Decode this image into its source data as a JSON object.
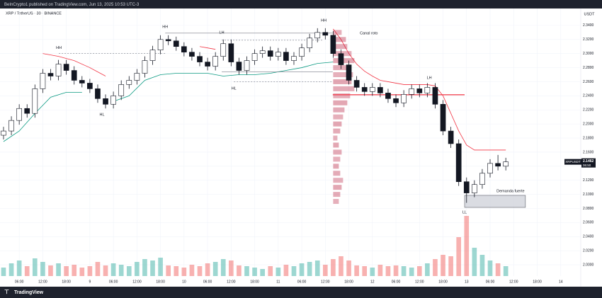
{
  "header": {
    "publisher": "BeInCrypto1 published on TradingView.com, Jun 13, 2025 10:53 UTC-3",
    "brand": "TradingView"
  },
  "chart_data": {
    "type": "candlestick",
    "symbol": "XRP / TetherUS · 30 · BINANCE",
    "y_unit": "USDT",
    "x": [
      2,
      4,
      6,
      8,
      10,
      12,
      14,
      16,
      18,
      20,
      22,
      24,
      26,
      28,
      30,
      32,
      34,
      36,
      38,
      40,
      42,
      44,
      46,
      48,
      50,
      52,
      54,
      56,
      58,
      60,
      62,
      64,
      66,
      68,
      70,
      72,
      74,
      76,
      78,
      80,
      82,
      84,
      86,
      88,
      90,
      92,
      94,
      96,
      98,
      100,
      102,
      104,
      106,
      108,
      110,
      112,
      114,
      116,
      118,
      120,
      122,
      124,
      126,
      128,
      130
    ],
    "open": [
      2.184,
      2.19,
      2.205,
      2.222,
      2.215,
      2.25,
      2.272,
      2.268,
      2.285,
      2.276,
      2.262,
      2.258,
      2.25,
      2.236,
      2.228,
      2.24,
      2.256,
      2.262,
      2.272,
      2.29,
      2.305,
      2.32,
      2.318,
      2.31,
      2.302,
      2.296,
      2.288,
      2.282,
      2.296,
      2.314,
      2.288,
      2.276,
      2.29,
      2.3,
      2.304,
      2.296,
      2.302,
      2.29,
      2.296,
      2.308,
      2.322,
      2.33,
      2.326,
      2.3,
      2.284,
      2.262,
      2.252,
      2.246,
      2.252,
      2.244,
      2.236,
      2.23,
      2.242,
      2.25,
      2.244,
      2.252,
      2.228,
      2.19,
      2.172,
      2.118,
      2.102,
      2.114,
      2.13,
      2.144,
      2.14
    ],
    "high": [
      2.196,
      2.211,
      2.228,
      2.228,
      2.256,
      2.278,
      2.278,
      2.291,
      2.291,
      2.282,
      2.268,
      2.264,
      2.256,
      2.242,
      2.246,
      2.262,
      2.268,
      2.278,
      2.296,
      2.311,
      2.326,
      2.326,
      2.324,
      2.316,
      2.308,
      2.302,
      2.294,
      2.302,
      2.32,
      2.32,
      2.294,
      2.296,
      2.306,
      2.31,
      2.31,
      2.308,
      2.308,
      2.302,
      2.314,
      2.328,
      2.336,
      2.336,
      2.332,
      2.306,
      2.29,
      2.268,
      2.258,
      2.258,
      2.258,
      2.25,
      2.242,
      2.248,
      2.256,
      2.256,
      2.258,
      2.258,
      2.234,
      2.196,
      2.178,
      2.124,
      2.12,
      2.136,
      2.15,
      2.156,
      2.152
    ],
    "low": [
      2.178,
      2.184,
      2.199,
      2.209,
      2.209,
      2.244,
      2.262,
      2.262,
      2.27,
      2.256,
      2.252,
      2.244,
      2.23,
      2.222,
      2.222,
      2.234,
      2.25,
      2.256,
      2.266,
      2.284,
      2.299,
      2.312,
      2.304,
      2.296,
      2.29,
      2.282,
      2.276,
      2.276,
      2.29,
      2.282,
      2.27,
      2.27,
      2.284,
      2.294,
      2.29,
      2.29,
      2.284,
      2.284,
      2.29,
      2.302,
      2.316,
      2.32,
      2.294,
      2.278,
      2.256,
      2.246,
      2.24,
      2.24,
      2.238,
      2.23,
      2.224,
      2.224,
      2.236,
      2.238,
      2.238,
      2.222,
      2.184,
      2.166,
      2.112,
      2.088,
      2.096,
      2.108,
      2.124,
      2.134,
      2.134
    ],
    "close": [
      2.19,
      2.205,
      2.222,
      2.215,
      2.25,
      2.272,
      2.268,
      2.285,
      2.276,
      2.262,
      2.258,
      2.25,
      2.236,
      2.228,
      2.24,
      2.256,
      2.262,
      2.272,
      2.29,
      2.305,
      2.32,
      2.318,
      2.31,
      2.302,
      2.296,
      2.288,
      2.282,
      2.296,
      2.314,
      2.288,
      2.276,
      2.29,
      2.3,
      2.304,
      2.296,
      2.302,
      2.29,
      2.296,
      2.308,
      2.322,
      2.33,
      2.326,
      2.3,
      2.284,
      2.262,
      2.252,
      2.246,
      2.252,
      2.244,
      2.236,
      2.23,
      2.242,
      2.25,
      2.244,
      2.252,
      2.228,
      2.19,
      2.172,
      2.118,
      2.102,
      2.114,
      2.13,
      2.144,
      2.14,
      2.1462
    ],
    "volume": [
      12,
      18,
      22,
      14,
      25,
      20,
      15,
      18,
      14,
      16,
      12,
      14,
      20,
      15,
      18,
      16,
      14,
      20,
      24,
      22,
      26,
      15,
      14,
      12,
      16,
      14,
      18,
      20,
      24,
      22,
      15,
      14,
      12,
      10,
      14,
      12,
      16,
      14,
      18,
      20,
      22,
      16,
      24,
      28,
      22,
      15,
      14,
      12,
      16,
      14,
      15,
      14,
      12,
      14,
      18,
      24,
      30,
      28,
      55,
      85,
      40,
      30,
      22,
      18,
      14
    ],
    "up_color": "#ffffff",
    "down_color": "#131722",
    "volume_up_color": "#26a69a",
    "volume_down_color": "#ef5350",
    "indicator_lines": [
      {
        "color": "#f23645",
        "x": [
          12,
          16,
          20,
          24,
          28,
          30,
          52,
          54,
          56,
          58,
          86,
          88,
          90,
          92,
          94,
          96,
          98,
          100,
          102,
          104,
          106,
          108,
          110,
          112,
          114,
          116,
          118,
          120,
          122,
          124,
          126,
          128,
          130
        ],
        "values": [
          2.3,
          2.296,
          2.29,
          2.28,
          2.268,
          null,
          2.31,
          2.308,
          2.306,
          null,
          2.335,
          2.32,
          2.3,
          2.285,
          2.275,
          2.268,
          2.262,
          2.26,
          2.258,
          2.256,
          2.256,
          2.256,
          2.256,
          2.254,
          2.24,
          2.215,
          2.19,
          2.17,
          2.163,
          2.163,
          2.163,
          2.163,
          2.163
        ]
      },
      {
        "color": "#089981",
        "x": [
          2,
          6,
          10,
          14,
          18,
          22,
          26,
          30,
          34,
          38,
          42,
          46,
          50,
          54,
          58,
          62,
          66,
          70,
          74,
          78,
          82,
          86
        ],
        "values": [
          2.175,
          2.19,
          2.215,
          2.238,
          2.245,
          2.245,
          null,
          2.232,
          2.24,
          2.262,
          2.27,
          2.272,
          2.272,
          2.272,
          2.268,
          2.27,
          2.27,
          2.272,
          2.276,
          2.28,
          2.286,
          2.288
        ]
      }
    ],
    "volume_profile": {
      "x": 86,
      "color": "#b71c3c",
      "prices": [
        2.09,
        2.1,
        2.11,
        2.12,
        2.13,
        2.14,
        2.15,
        2.16,
        2.17,
        2.18,
        2.19,
        2.2,
        2.21,
        2.22,
        2.23,
        2.24,
        2.25,
        2.26,
        2.27,
        2.28,
        2.29,
        2.3,
        2.31,
        2.32,
        2.33
      ],
      "values": [
        8,
        10,
        12,
        14,
        10,
        8,
        10,
        12,
        8,
        6,
        10,
        12,
        14,
        16,
        20,
        24,
        30,
        26,
        28,
        24,
        30,
        26,
        20,
        18,
        12
      ]
    },
    "levels": [
      {
        "x1": 16.1,
        "x2": 43.2,
        "price": 2.3,
        "color": "#787b86",
        "dashed": true
      },
      {
        "x1": 43.2,
        "x2": 85.9,
        "price": 2.329,
        "color": "#787b86",
        "dashed": false
      },
      {
        "x1": 57.6,
        "x2": 83.6,
        "price": 2.319,
        "color": "#787b86",
        "dashed": true
      },
      {
        "x1": 57.6,
        "x2": 85.9,
        "price": 2.274,
        "color": "#787b86",
        "dashed": false
      },
      {
        "x1": 60.7,
        "x2": 85.9,
        "price": 2.26,
        "color": "#787b86",
        "dashed": true
      },
      {
        "x1": 85.9,
        "x2": 119.5,
        "price": 2.2415,
        "color": "#f23645",
        "dashed": false
      }
    ],
    "zone": {
      "x1": 119.5,
      "x2": 135,
      "price_top": 2.0986,
      "price_bottom": 2.0815,
      "color": "#d1d4dc"
    },
    "annotations": [
      {
        "text": "HH",
        "x": 16.1,
        "price": 2.308
      },
      {
        "text": "HH",
        "x": 43.2,
        "price": 2.338
      },
      {
        "text": "LH",
        "x": 57.6,
        "price": 2.33
      },
      {
        "text": "HH",
        "x": 83.6,
        "price": 2.347
      },
      {
        "text": "Canal roto",
        "x": 92.8,
        "price": 2.329
      },
      {
        "text": "LH",
        "x": 110.5,
        "price": 2.2656
      },
      {
        "text": "HL",
        "x": 27.1,
        "price": 2.2133
      },
      {
        "text": "HL",
        "x": 60.7,
        "price": 2.2505
      },
      {
        "text": "LL",
        "x": 119.5,
        "price": 2.0745
      },
      {
        "text": "Demanda fuerte",
        "x": 131.2,
        "price": 2.1046
      }
    ],
    "last_price": {
      "symbol": "XRPUSDT",
      "price": "2.1462",
      "countdown": "06:50"
    },
    "xlim": [
      1.1,
      149.1
    ],
    "xticks": [
      {
        "value": 6,
        "label": "06:00"
      },
      {
        "value": 12,
        "label": "12:00"
      },
      {
        "value": 18,
        "label": "18:00"
      },
      {
        "value": 24,
        "label": "9"
      },
      {
        "value": 30,
        "label": "06:00"
      },
      {
        "value": 36,
        "label": "12:00"
      },
      {
        "value": 42,
        "label": "18:00"
      },
      {
        "value": 48,
        "label": "10"
      },
      {
        "value": 54,
        "label": "06:00"
      },
      {
        "value": 60,
        "label": "12:00"
      },
      {
        "value": 66,
        "label": "18:00"
      },
      {
        "value": 72,
        "label": "11"
      },
      {
        "value": 78,
        "label": "06:00"
      },
      {
        "value": 84,
        "label": "12:00"
      },
      {
        "value": 90,
        "label": "18:00"
      },
      {
        "value": 96,
        "label": "12"
      },
      {
        "value": 102,
        "label": "06:00"
      },
      {
        "value": 108,
        "label": "12:00"
      },
      {
        "value": 114,
        "label": "18:00"
      },
      {
        "value": 120,
        "label": "13"
      },
      {
        "value": 126,
        "label": "06:00"
      },
      {
        "value": 132,
        "label": "12:00"
      },
      {
        "value": 138,
        "label": "18:00"
      },
      {
        "value": 144,
        "label": "14"
      }
    ],
    "ylim": [
      1.984,
      2.364
    ],
    "yticks": [
      {
        "value": 2.0,
        "label": "2.0000"
      },
      {
        "value": 2.02,
        "label": "2.0200"
      },
      {
        "value": 2.04,
        "label": "2.0400"
      },
      {
        "value": 2.06,
        "label": "2.0600"
      },
      {
        "value": 2.08,
        "label": "2.0800"
      },
      {
        "value": 2.1,
        "label": "2.1000"
      },
      {
        "value": 2.12,
        "label": "2.1200"
      },
      {
        "value": 2.14,
        "label": "2.1400"
      },
      {
        "value": 2.16,
        "label": "2.1600"
      },
      {
        "value": 2.18,
        "label": "2.1800"
      },
      {
        "value": 2.2,
        "label": "2.2000"
      },
      {
        "value": 2.22,
        "label": "2.2200"
      },
      {
        "value": 2.24,
        "label": "2.2400"
      },
      {
        "value": 2.26,
        "label": "2.2600"
      },
      {
        "value": 2.28,
        "label": "2.2800"
      },
      {
        "value": 2.3,
        "label": "2.3000"
      },
      {
        "value": 2.32,
        "label": "2.3200"
      },
      {
        "value": 2.34,
        "label": "2.3400"
      }
    ],
    "grid": true
  }
}
